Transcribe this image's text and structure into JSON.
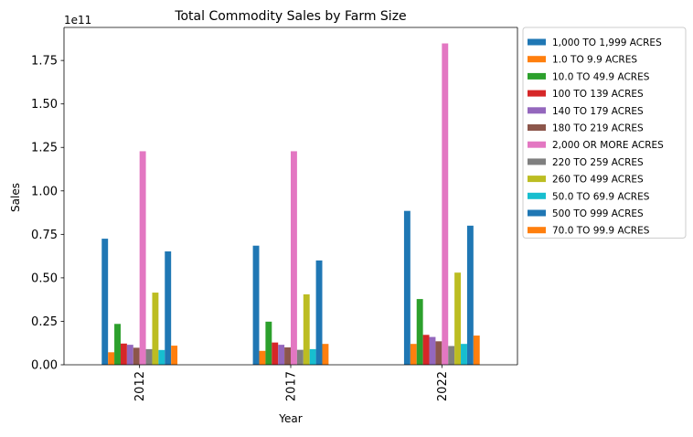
{
  "chart_data": {
    "type": "bar",
    "title": "Total Commodity Sales by Farm Size",
    "xlabel": "Year",
    "ylabel": "Sales",
    "y_offset_text": "1e11",
    "categories": [
      "2012",
      "2017",
      "2022"
    ],
    "ylim": [
      0,
      1.94
    ],
    "yticks": [
      "0.00",
      "0.25",
      "0.50",
      "0.75",
      "1.00",
      "1.25",
      "1.50",
      "1.75"
    ],
    "grid": false,
    "legend_position": "outside-right",
    "value_unit_scale": "1e11",
    "series": [
      {
        "name": "1,000 TO 1,999 ACRES",
        "color": "#1f77b4",
        "values": [
          0.725,
          0.685,
          0.885
        ]
      },
      {
        "name": "1.0 TO 9.9 ACRES",
        "color": "#ff7f0e",
        "values": [
          0.072,
          0.08,
          0.12
        ]
      },
      {
        "name": "10.0 TO 49.9 ACRES",
        "color": "#2ca02c",
        "values": [
          0.235,
          0.248,
          0.378
        ]
      },
      {
        "name": "100 TO 139 ACRES",
        "color": "#d62728",
        "values": [
          0.122,
          0.128,
          0.172
        ]
      },
      {
        "name": "140 TO 179 ACRES",
        "color": "#9467bd",
        "values": [
          0.115,
          0.115,
          0.16
        ]
      },
      {
        "name": "180 TO 219 ACRES",
        "color": "#8c564b",
        "values": [
          0.098,
          0.1,
          0.135
        ]
      },
      {
        "name": "2,000 OR MORE ACRES",
        "color": "#e377c2",
        "values": [
          1.228,
          1.228,
          1.848
        ]
      },
      {
        "name": "220 TO 259 ACRES",
        "color": "#7f7f7f",
        "values": [
          0.09,
          0.086,
          0.108
        ]
      },
      {
        "name": "260 TO 499 ACRES",
        "color": "#bcbd22",
        "values": [
          0.415,
          0.405,
          0.53
        ]
      },
      {
        "name": "50.0 TO 69.9 ACRES",
        "color": "#17becf",
        "values": [
          0.085,
          0.09,
          0.12
        ]
      },
      {
        "name": "500 TO 999 ACRES",
        "color": "#1f77b4",
        "values": [
          0.652,
          0.6,
          0.8
        ]
      },
      {
        "name": "70.0 TO 99.9 ACRES",
        "color": "#ff7f0e",
        "values": [
          0.11,
          0.12,
          0.168
        ]
      }
    ]
  }
}
